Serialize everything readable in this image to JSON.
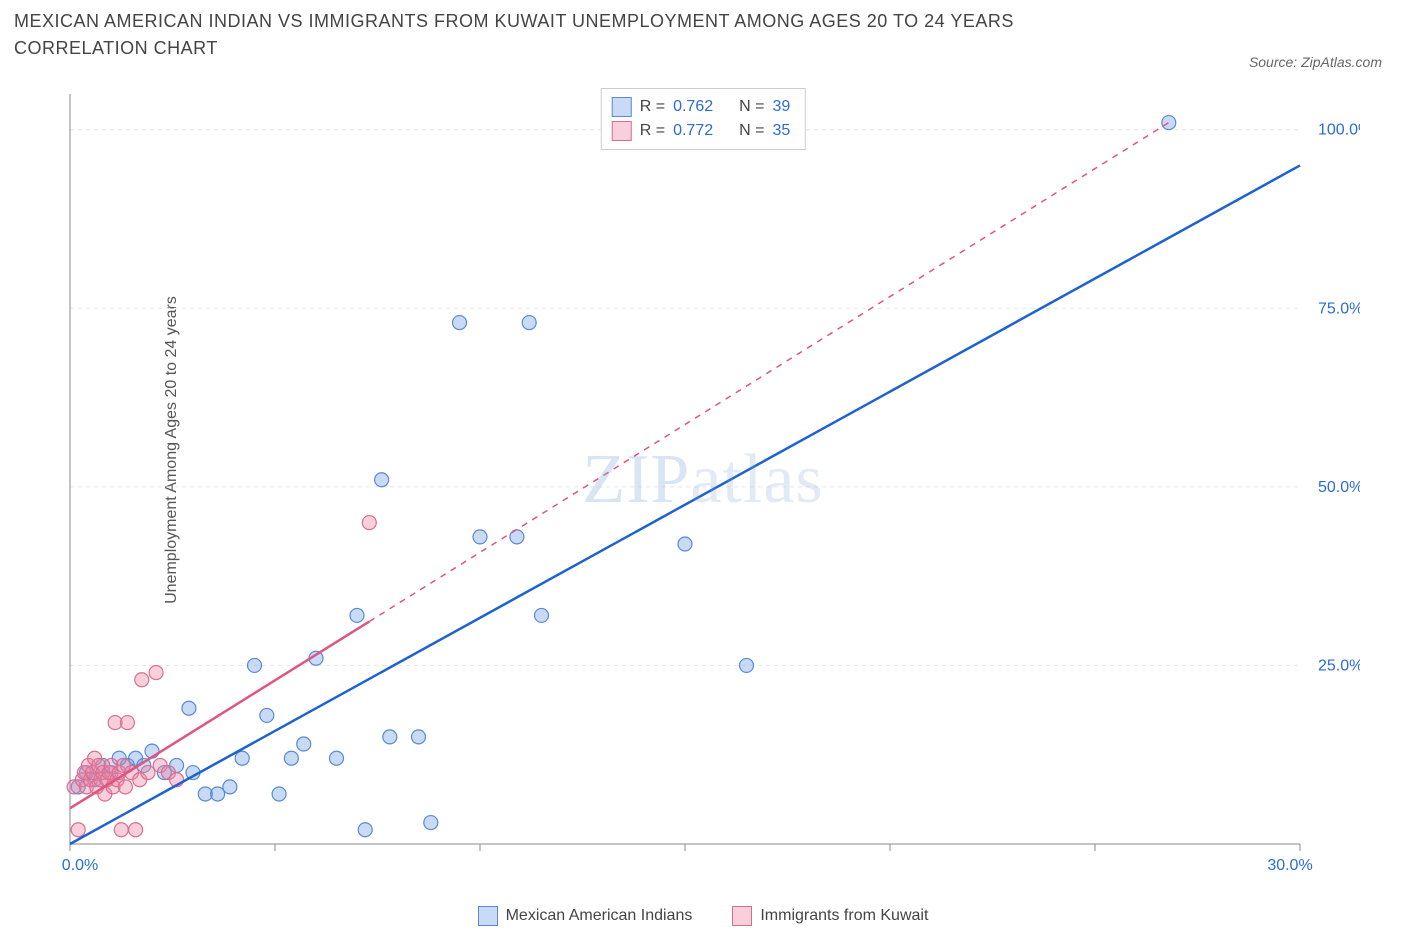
{
  "title": "MEXICAN AMERICAN INDIAN VS IMMIGRANTS FROM KUWAIT UNEMPLOYMENT AMONG AGES 20 TO 24 YEARS CORRELATION CHART",
  "source_label": "Source: ZipAtlas.com",
  "y_axis_label": "Unemployment Among Ages 20 to 24 years",
  "watermark": {
    "bold": "ZIP",
    "thin": "atlas"
  },
  "chart": {
    "type": "scatter",
    "xlim": [
      0,
      30
    ],
    "ylim": [
      0,
      105
    ],
    "x_ticks": [
      0,
      5,
      10,
      15,
      20,
      25,
      30
    ],
    "x_tick_labels": [
      "0.0%",
      "",
      "",
      "",
      "",
      "",
      "30.0%"
    ],
    "y_ticks": [
      25,
      50,
      75,
      100
    ],
    "y_tick_labels": [
      "25.0%",
      "50.0%",
      "75.0%",
      "100.0%"
    ],
    "grid_color": "#e5e5e5",
    "axis_color": "#888888",
    "background_color": "#ffffff",
    "marker_radius": 7,
    "marker_stroke_width": 1.2,
    "trend_line_width": 2.5,
    "series": [
      {
        "name": "Mexican American Indians",
        "fill": "rgba(100,150,230,0.35)",
        "stroke": "#5a8bd0",
        "line_color": "#1e62d0",
        "r_value": "0.762",
        "n_value": "39",
        "trend": {
          "x1": 0,
          "y1": 0,
          "x2": 30,
          "y2": 95,
          "dashed_from_x": null
        },
        "points": [
          [
            0.2,
            8
          ],
          [
            0.4,
            10
          ],
          [
            0.6,
            9
          ],
          [
            0.8,
            11
          ],
          [
            1.0,
            10
          ],
          [
            1.2,
            12
          ],
          [
            1.4,
            11
          ],
          [
            1.6,
            12
          ],
          [
            1.8,
            11
          ],
          [
            2.0,
            13
          ],
          [
            2.3,
            10
          ],
          [
            2.6,
            11
          ],
          [
            2.9,
            19
          ],
          [
            3.0,
            10
          ],
          [
            3.3,
            7
          ],
          [
            3.6,
            7
          ],
          [
            3.9,
            8
          ],
          [
            4.2,
            12
          ],
          [
            4.5,
            25
          ],
          [
            4.8,
            18
          ],
          [
            5.1,
            7
          ],
          [
            5.4,
            12
          ],
          [
            5.7,
            14
          ],
          [
            6.0,
            26
          ],
          [
            6.5,
            12
          ],
          [
            7.0,
            32
          ],
          [
            7.2,
            2
          ],
          [
            7.6,
            51
          ],
          [
            7.8,
            15
          ],
          [
            8.5,
            15
          ],
          [
            8.8,
            3
          ],
          [
            9.5,
            73
          ],
          [
            10.0,
            43
          ],
          [
            10.9,
            43
          ],
          [
            11.2,
            73
          ],
          [
            11.5,
            32
          ],
          [
            15.0,
            42
          ],
          [
            16.5,
            25
          ],
          [
            26.8,
            101
          ]
        ]
      },
      {
        "name": "Immigrants from Kuwait",
        "fill": "rgba(240,130,160,0.38)",
        "stroke": "#d86f92",
        "line_color": "#e05580",
        "r_value": "0.772",
        "n_value": "35",
        "trend": {
          "x1": 0,
          "y1": 5,
          "x2": 26.8,
          "y2": 101,
          "dashed_from_x": 7.3
        },
        "points": [
          [
            0.1,
            8
          ],
          [
            0.2,
            2
          ],
          [
            0.3,
            9
          ],
          [
            0.35,
            10
          ],
          [
            0.4,
            8
          ],
          [
            0.45,
            11
          ],
          [
            0.5,
            9
          ],
          [
            0.55,
            10
          ],
          [
            0.6,
            12
          ],
          [
            0.65,
            8
          ],
          [
            0.7,
            11
          ],
          [
            0.75,
            9
          ],
          [
            0.8,
            10
          ],
          [
            0.85,
            7
          ],
          [
            0.9,
            9
          ],
          [
            0.95,
            10
          ],
          [
            1.0,
            11
          ],
          [
            1.05,
            8
          ],
          [
            1.1,
            17
          ],
          [
            1.15,
            9
          ],
          [
            1.2,
            10
          ],
          [
            1.25,
            2
          ],
          [
            1.3,
            11
          ],
          [
            1.35,
            8
          ],
          [
            1.4,
            17
          ],
          [
            1.5,
            10
          ],
          [
            1.6,
            2
          ],
          [
            1.7,
            9
          ],
          [
            1.75,
            23
          ],
          [
            1.9,
            10
          ],
          [
            2.1,
            24
          ],
          [
            2.2,
            11
          ],
          [
            2.4,
            10
          ],
          [
            2.6,
            9
          ],
          [
            7.3,
            45
          ]
        ]
      }
    ]
  },
  "stats_box": {
    "rows": [
      {
        "swatch_fill": "rgba(100,150,230,0.35)",
        "swatch_stroke": "#5a8bd0",
        "r_label": "R =",
        "r_value": "0.762",
        "n_label": "N =",
        "n_value": "39"
      },
      {
        "swatch_fill": "rgba(240,130,160,0.38)",
        "swatch_stroke": "#d86f92",
        "r_label": "R =",
        "r_value": "0.772",
        "n_label": "N =",
        "n_value": "35"
      }
    ]
  },
  "bottom_legend": [
    {
      "swatch_fill": "rgba(100,150,230,0.35)",
      "swatch_stroke": "#5a8bd0",
      "label": "Mexican American Indians"
    },
    {
      "swatch_fill": "rgba(240,130,160,0.38)",
      "swatch_stroke": "#d86f92",
      "label": "Immigrants from Kuwait"
    }
  ]
}
